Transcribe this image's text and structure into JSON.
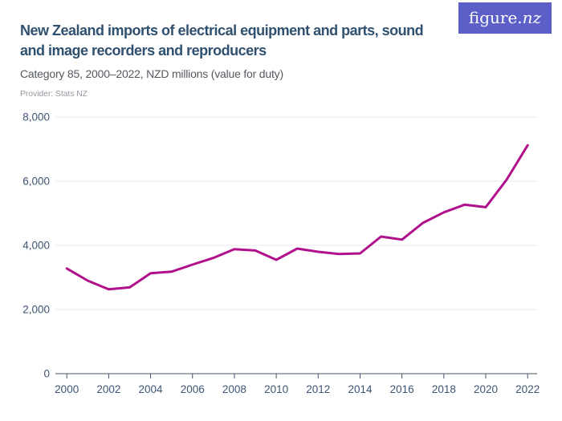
{
  "header": {
    "title_lines": [
      "New Zealand imports of electrical equipment and parts, sound",
      "and image recorders and reproducers"
    ],
    "subtitle": "Category 85, 2000–2022, NZD millions (value for duty)",
    "provider": "Provider: Stats NZ",
    "logo": {
      "main": "figure.",
      "accent": "nz"
    }
  },
  "theme": {
    "logo_background": "#5b5fc7",
    "logo_text": "#ffffff",
    "title_color": "#30506f",
    "subtitle_color": "#54595f",
    "provider_color": "#94999f"
  },
  "chart_data": {
    "type": "line",
    "title": "New Zealand imports of electrical equipment and parts, sound and image recorders and reproducers",
    "subtitle": "Category 85, 2000–2022, NZD millions (value for duty)",
    "provider": "Stats NZ",
    "xlabel": "",
    "ylabel": "",
    "x": [
      2000,
      2001,
      2002,
      2003,
      2004,
      2005,
      2006,
      2007,
      2008,
      2009,
      2010,
      2011,
      2012,
      2013,
      2014,
      2015,
      2016,
      2017,
      2018,
      2019,
      2020,
      2021,
      2022
    ],
    "values": [
      3280,
      2900,
      2630,
      2690,
      3130,
      3180,
      3400,
      3610,
      3880,
      3840,
      3550,
      3900,
      3800,
      3730,
      3750,
      4275,
      4180,
      4700,
      5030,
      5270,
      5190,
      6050,
      7120
    ],
    "ylim": [
      0,
      8000
    ],
    "yticks": [
      0,
      2000,
      4000,
      6000,
      8000
    ],
    "xticks": [
      2000,
      2002,
      2004,
      2006,
      2008,
      2010,
      2012,
      2014,
      2016,
      2018,
      2020,
      2022
    ],
    "grid": "horizontal",
    "legend": "none",
    "colors": {
      "line": "#b1108c",
      "grid": "#e9eaec",
      "axis": "#42526a",
      "tick_text": "#3e5474"
    }
  }
}
